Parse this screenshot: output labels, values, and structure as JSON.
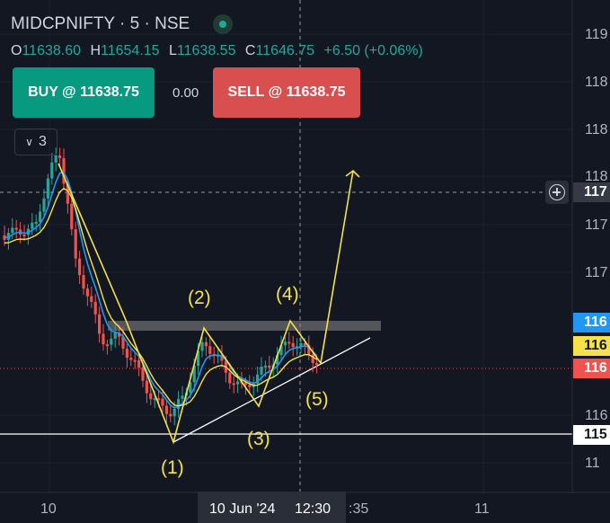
{
  "header": {
    "symbol_line": "MIDCPNIFTY · 5 · NSE",
    "status_icon": "market-open-dot-icon"
  },
  "ohlc": {
    "o_label": "O",
    "o_value": "11638.60",
    "h_label": "H",
    "h_value": "11654.15",
    "l_label": "L",
    "l_value": "11638.55",
    "c_label": "C",
    "c_value": "11646.75",
    "change": "+6.50 (+0.06%)"
  },
  "trade": {
    "buy_label": "BUY @ 11638.75",
    "spread": "0.00",
    "sell_label": "SELL @ 11638.75"
  },
  "collapse": {
    "count": "3"
  },
  "wave_labels": [
    "(1)",
    "(2)",
    "(3)",
    "(4)",
    "(5)"
  ],
  "price_axis": {
    "labels": [
      "119",
      "118",
      "118",
      "118",
      "117",
      "117",
      "116",
      "11"
    ],
    "crosshair_badge": "117",
    "badges": {
      "blue": "116",
      "yellow": "116",
      "red": "116",
      "white": "115"
    }
  },
  "time_axis": {
    "labels": [
      "10",
      "10 Jun '24",
      "12:30",
      ":35",
      "11"
    ]
  },
  "colors": {
    "up": "#26a69a",
    "down": "#ef5350",
    "ema_blue": "#2196f3",
    "ema_yellow": "#f5e24a",
    "wave": "#f5e24a",
    "bg": "#131722"
  }
}
